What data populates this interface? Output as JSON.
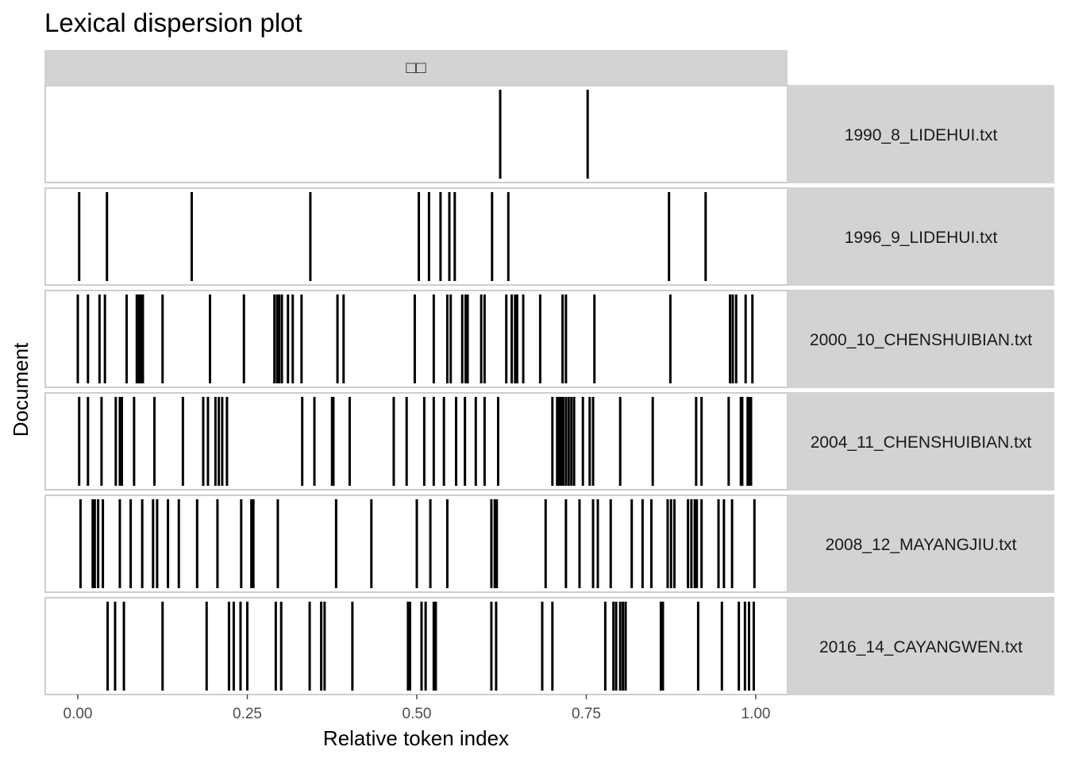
{
  "chart_data": {
    "type": "dispersion",
    "title": "Lexical dispersion plot",
    "xlabel": "Relative token index",
    "ylabel": "Document",
    "facet_strip_label": "□□",
    "xlim": [
      0,
      1
    ],
    "x_ticks": [
      "0.00",
      "0.25",
      "0.50",
      "0.75",
      "1.00"
    ],
    "x_tick_values": [
      0,
      0.25,
      0.5,
      0.75,
      1.0
    ],
    "legend": "none",
    "documents": [
      {
        "name": "1990_8_LIDEHUI.txt",
        "positions": [
          0.623,
          0.752
        ]
      },
      {
        "name": "1996_9_LIDEHUI.txt",
        "positions": [
          0.002,
          0.043,
          0.168,
          0.343,
          0.503,
          0.518,
          0.535,
          0.548,
          0.556,
          0.611,
          0.635,
          0.872,
          0.926
        ]
      },
      {
        "name": "2000_10_CHENSHUIBIAN.txt",
        "positions": [
          0.0,
          0.015,
          0.032,
          0.04,
          0.072,
          0.087,
          0.09,
          0.093,
          0.096,
          0.125,
          0.195,
          0.245,
          0.29,
          0.294,
          0.297,
          0.301,
          0.31,
          0.317,
          0.33,
          0.383,
          0.392,
          0.497,
          0.525,
          0.545,
          0.55,
          0.567,
          0.572,
          0.575,
          0.595,
          0.6,
          0.632,
          0.64,
          0.645,
          0.648,
          0.657,
          0.682,
          0.715,
          0.72,
          0.762,
          0.874,
          0.962,
          0.966,
          0.971,
          0.985,
          0.995
        ]
      },
      {
        "name": "2004_11_CHENSHUIBIAN.txt",
        "positions": [
          0.002,
          0.015,
          0.035,
          0.056,
          0.062,
          0.065,
          0.083,
          0.113,
          0.155,
          0.185,
          0.192,
          0.203,
          0.208,
          0.213,
          0.22,
          0.331,
          0.349,
          0.375,
          0.377,
          0.401,
          0.466,
          0.485,
          0.511,
          0.525,
          0.54,
          0.558,
          0.571,
          0.587,
          0.6,
          0.62,
          0.7,
          0.707,
          0.71,
          0.713,
          0.716,
          0.72,
          0.724,
          0.728,
          0.732,
          0.745,
          0.755,
          0.76,
          0.8,
          0.848,
          0.912,
          0.92,
          0.96,
          0.978,
          0.98,
          0.988,
          0.99,
          0.993
        ]
      },
      {
        "name": "2008_12_MAYANGJIU.txt",
        "positions": [
          0.004,
          0.022,
          0.025,
          0.03,
          0.037,
          0.062,
          0.078,
          0.095,
          0.111,
          0.117,
          0.133,
          0.149,
          0.176,
          0.206,
          0.241,
          0.256,
          0.259,
          0.295,
          0.381,
          0.433,
          0.5,
          0.52,
          0.545,
          0.61,
          0.615,
          0.618,
          0.69,
          0.72,
          0.74,
          0.76,
          0.767,
          0.786,
          0.817,
          0.833,
          0.846,
          0.87,
          0.875,
          0.88,
          0.9,
          0.905,
          0.91,
          0.913,
          0.92,
          0.945,
          0.953,
          0.965,
          0.998
        ]
      },
      {
        "name": "2016_14_CAYANGWEN.txt",
        "positions": [
          0.044,
          0.055,
          0.068,
          0.125,
          0.19,
          0.223,
          0.23,
          0.24,
          0.25,
          0.292,
          0.3,
          0.342,
          0.359,
          0.364,
          0.405,
          0.487,
          0.49,
          0.507,
          0.513,
          0.525,
          0.528,
          0.61,
          0.617,
          0.685,
          0.7,
          0.778,
          0.79,
          0.794,
          0.8,
          0.804,
          0.808,
          0.86,
          0.863,
          0.915,
          0.95,
          0.975,
          0.984,
          0.99,
          0.997
        ]
      }
    ]
  }
}
